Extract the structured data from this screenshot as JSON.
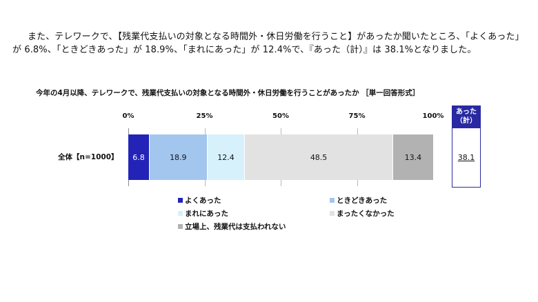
{
  "intro_text": "また、テレワークで、【残業代支払いの対象となる時間外・休日労働を行うこと】があったか聞いたところ、「よくあった」が 6.8%、「ときどきあった」が 18.9%、「まれにあった」が 12.4%で、『あった（計）』は 38.1%となりました。",
  "chart_data": {
    "type": "bar",
    "orientation": "horizontal-stacked-100",
    "title": "今年の4月以降、テレワークで、残業代支払いの対象となる時間外・休日労働を行うことがあったか ［単一回答形式］",
    "categories": [
      "全体【n=1000】"
    ],
    "x_ticks": [
      "0%",
      "25%",
      "50%",
      "75%",
      "100%"
    ],
    "xlim": [
      0,
      100
    ],
    "series": [
      {
        "name": "よくあった",
        "values": [
          6.8
        ],
        "label": "6.8",
        "color": "#2323b8",
        "text_color": "#ffffff"
      },
      {
        "name": "ときどきあった",
        "values": [
          18.9
        ],
        "label": "18.9",
        "color": "#a3c6ee",
        "text_color": "#111111"
      },
      {
        "name": "まれにあった",
        "values": [
          12.4
        ],
        "label": "12.4",
        "color": "#d6f1fb",
        "text_color": "#111111"
      },
      {
        "name": "まったくなかった",
        "values": [
          48.5
        ],
        "label": "48.5",
        "color": "#e2e2e2",
        "text_color": "#111111"
      },
      {
        "name": "立場上、残業代は支払われない",
        "values": [
          13.4
        ],
        "label": "13.4",
        "color": "#b2b2b2",
        "text_color": "#111111"
      }
    ],
    "total": {
      "header_line1": "あった",
      "header_line2": "（計）",
      "value": "38.1"
    },
    "legend_placement": "bottom"
  }
}
